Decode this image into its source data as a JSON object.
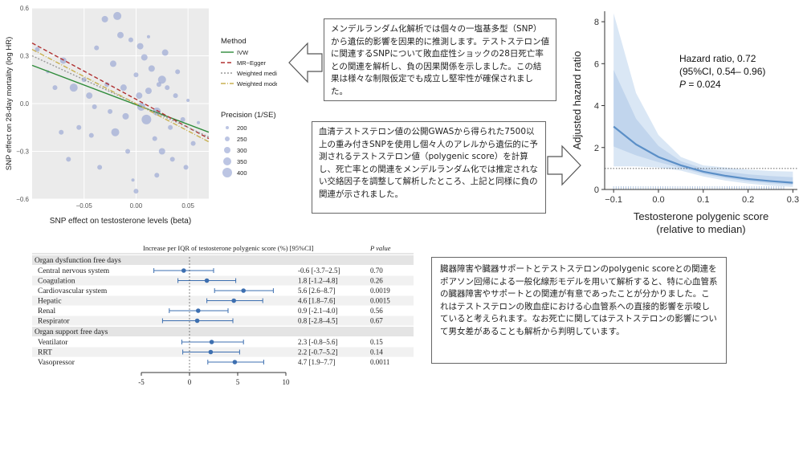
{
  "mr_scatter": {
    "xlabel": "SNP effect on testosterone levels (beta)",
    "ylabel": "SNP effect on 28-day mortality (log HR)",
    "xticks": [
      "−0.05",
      "0.00",
      "0.05"
    ],
    "yticks": [
      "0.6",
      "0.3",
      "0.0",
      "−0.3",
      "−0.6"
    ],
    "legend_method_title": "Method",
    "legend_methods": [
      "IVW",
      "MR−Egger",
      "Weighted median",
      "Weighted mode"
    ],
    "legend_precision_title": "Precision (1/SE)",
    "legend_precision": [
      "200",
      "250",
      "300",
      "350",
      "400"
    ],
    "colors": {
      "ivw": "#2e8b3a",
      "egger": "#b03030",
      "wmedian": "#999999",
      "wmode": "#c8b050",
      "points": "#8f9fd0"
    }
  },
  "callout_top": {
    "text": "メンデルランダム化解析では個々の一塩基多型（SNP）から遺伝的影響を因果的に推測します。テストステロン値に関連するSNPについて敗血症性ショックの28日死亡率との関連を解析し、負の因果関係を示しました。この結果は様々な制限仮定でも成立し堅牢性が確保されました。"
  },
  "callout_mid": {
    "text": "血清テストステロン値の公開GWASから得られた7500以上の重み付きSNPを使用し個々人のアレルから遺伝的に予測されるテストステロン値（polygenic score）を計算し、死亡率との関連をメンデルランダム化では推定されない交絡因子を調整して解析したところ、上記と同様に負の関連が示されました。"
  },
  "callout_bottom": {
    "text": "臓器障害や臓器サポートとテストステロンのpolygenic scoreとの関連をポアソン回帰による一般化線形モデルを用いて解析すると、特に心血管系の臓器障害やサポートとの関連が有意であったことが分かりました。これはテストステロンの敗血症における心血管系への直接的影響を示唆していると考えられます。なお死亡に関してはテストステロンの影響について男女差があることも解析から判明しています。"
  },
  "hr_plot": {
    "ylabel": "Adjusted hazard ratio",
    "xlabel_line1": "Testosterone polygenic score",
    "xlabel_line2": "(relative to median)",
    "xticks": [
      "−0.1",
      "0.0",
      "0.1",
      "0.2",
      "0.3"
    ],
    "yticks": [
      "0",
      "2",
      "4",
      "6",
      "8"
    ],
    "annotation_line1": "Hazard ratio, 0.72",
    "annotation_line2": "(95%CI, 0.54– 0.96)",
    "annotation_p_label": "P",
    "annotation_p_value": " = 0.024"
  },
  "forest": {
    "header_label": "Increase per IQR of testosterone polygenic score (%) [95%CI]",
    "header_p": "P value",
    "section1": "Organ dysfunction free days",
    "section2": "Organ support free days",
    "rows1": [
      {
        "label": "Central nervous system",
        "est": "-0.6 [-3.7–2.5]",
        "p": "0.70"
      },
      {
        "label": "Coagulation",
        "est": "1.8 [-1.2–4.8]",
        "p": "0.26"
      },
      {
        "label": "Cardiovascular system",
        "est": "5.6 [2.6–8.7]",
        "p": "0.0019"
      },
      {
        "label": "Hepatic",
        "est": "4.6 [1.8–7.6]",
        "p": "0.0015"
      },
      {
        "label": "Renal",
        "est": "0.9 [-2.1–4.0]",
        "p": "0.56"
      },
      {
        "label": "Respirator",
        "est": "0.8 [-2.8–4.5]",
        "p": "0.67"
      }
    ],
    "rows2": [
      {
        "label": "Ventilator",
        "est": "2.3 [-0.8–5.6]",
        "p": "0.15"
      },
      {
        "label": "RRT",
        "est": "2.2 [-0.7–5.2]",
        "p": "0.14"
      },
      {
        "label": "Vasopressor",
        "est": "4.7 [1.9–7.7]",
        "p": "0.0011"
      }
    ],
    "xticks": [
      "-5",
      "0",
      "5",
      "10"
    ]
  },
  "chart_data": [
    {
      "type": "scatter",
      "title": "",
      "xlabel": "SNP effect on testosterone levels (beta)",
      "ylabel": "SNP effect on 28-day mortality (log HR)",
      "xlim": [
        -0.1,
        0.07
      ],
      "ylim": [
        -0.6,
        0.6
      ],
      "points": [
        {
          "x": -0.095,
          "y": 0.34,
          "s": 250
        },
        {
          "x": -0.085,
          "y": 0.2,
          "s": 200
        },
        {
          "x": -0.078,
          "y": 0.1,
          "s": 250
        },
        {
          "x": -0.07,
          "y": 0.27,
          "s": 300
        },
        {
          "x": -0.06,
          "y": 0.1,
          "s": 350
        },
        {
          "x": -0.055,
          "y": -0.15,
          "s": 250
        },
        {
          "x": -0.05,
          "y": 0.15,
          "s": 250
        },
        {
          "x": -0.045,
          "y": 0.05,
          "s": 300
        },
        {
          "x": -0.043,
          "y": -0.2,
          "s": 250
        },
        {
          "x": -0.038,
          "y": 0.35,
          "s": 250
        },
        {
          "x": -0.035,
          "y": -0.4,
          "s": 250
        },
        {
          "x": -0.03,
          "y": 0.53,
          "s": 300
        },
        {
          "x": -0.028,
          "y": 0.12,
          "s": 250
        },
        {
          "x": -0.025,
          "y": -0.05,
          "s": 250
        },
        {
          "x": -0.022,
          "y": 0.25,
          "s": 300
        },
        {
          "x": -0.02,
          "y": -0.18,
          "s": 350
        },
        {
          "x": -0.018,
          "y": 0.55,
          "s": 350
        },
        {
          "x": -0.015,
          "y": 0.43,
          "s": 300
        },
        {
          "x": -0.012,
          "y": 0.1,
          "s": 300
        },
        {
          "x": -0.01,
          "y": -0.08,
          "s": 300
        },
        {
          "x": -0.008,
          "y": -0.3,
          "s": 250
        },
        {
          "x": -0.005,
          "y": 0.4,
          "s": 250
        },
        {
          "x": -0.003,
          "y": -0.48,
          "s": 200
        },
        {
          "x": 0.0,
          "y": 0.18,
          "s": 250
        },
        {
          "x": 0.003,
          "y": 0.05,
          "s": 300
        },
        {
          "x": 0.005,
          "y": -0.02,
          "s": 350
        },
        {
          "x": 0.008,
          "y": 0.29,
          "s": 300
        },
        {
          "x": 0.01,
          "y": -0.1,
          "s": 400
        },
        {
          "x": 0.012,
          "y": 0.08,
          "s": 300
        },
        {
          "x": 0.015,
          "y": 0.22,
          "s": 300
        },
        {
          "x": 0.018,
          "y": -0.22,
          "s": 250
        },
        {
          "x": 0.02,
          "y": -0.05,
          "s": 350
        },
        {
          "x": 0.022,
          "y": 0.12,
          "s": 250
        },
        {
          "x": 0.025,
          "y": -0.3,
          "s": 300
        },
        {
          "x": 0.028,
          "y": 0.32,
          "s": 300
        },
        {
          "x": 0.03,
          "y": 0.1,
          "s": 250
        },
        {
          "x": 0.033,
          "y": -0.15,
          "s": 250
        },
        {
          "x": 0.035,
          "y": -0.35,
          "s": 250
        },
        {
          "x": 0.038,
          "y": 0.05,
          "s": 250
        },
        {
          "x": 0.045,
          "y": -0.1,
          "s": 250
        },
        {
          "x": 0.05,
          "y": 0.02,
          "s": 200
        },
        {
          "x": 0.055,
          "y": -0.25,
          "s": 250
        },
        {
          "x": 0.06,
          "y": -0.12,
          "s": 200
        },
        {
          "x": 0.048,
          "y": -0.4,
          "s": 250
        },
        {
          "x": -0.065,
          "y": -0.35,
          "s": 250
        },
        {
          "x": -0.072,
          "y": -0.18,
          "s": 250
        },
        {
          "x": 0.004,
          "y": 0.36,
          "s": 300
        },
        {
          "x": 0.012,
          "y": 0.42,
          "s": 200
        },
        {
          "x": 0.02,
          "y": -0.45,
          "s": 250
        },
        {
          "x": -0.04,
          "y": -0.02,
          "s": 250
        },
        {
          "x": 0.0,
          "y": -0.55,
          "s": 250
        },
        {
          "x": 0.025,
          "y": 0.15,
          "s": 350
        },
        {
          "x": 0.04,
          "y": 0.2,
          "s": 250
        }
      ],
      "series": [
        {
          "name": "IVW",
          "x": [
            -0.1,
            0.07
          ],
          "y": [
            0.24,
            -0.18
          ]
        },
        {
          "name": "MR−Egger",
          "x": [
            -0.1,
            0.07
          ],
          "y": [
            0.38,
            -0.22
          ]
        },
        {
          "name": "Weighted median",
          "x": [
            -0.1,
            0.07
          ],
          "y": [
            0.3,
            -0.21
          ]
        },
        {
          "name": "Weighted mode",
          "x": [
            -0.1,
            0.07
          ],
          "y": [
            0.34,
            -0.24
          ]
        }
      ]
    },
    {
      "type": "line",
      "title": "",
      "xlabel": "Testosterone polygenic score (relative to median)",
      "ylabel": "Adjusted hazard ratio",
      "xlim": [
        -0.12,
        0.31
      ],
      "ylim": [
        0,
        8.5
      ],
      "reference_line": 1,
      "series": [
        {
          "name": "Hazard ratio",
          "x": [
            -0.1,
            -0.05,
            0.0,
            0.05,
            0.1,
            0.15,
            0.2,
            0.25,
            0.3
          ],
          "y": [
            3.0,
            2.15,
            1.55,
            1.15,
            0.85,
            0.65,
            0.5,
            0.4,
            0.32
          ],
          "lower": [
            1.1,
            1.1,
            1.05,
            0.9,
            0.62,
            0.42,
            0.28,
            0.18,
            0.12
          ],
          "upper": [
            8.4,
            4.6,
            2.6,
            1.55,
            1.15,
            1.05,
            0.95,
            0.88,
            0.85
          ]
        }
      ]
    },
    {
      "type": "forest",
      "title": "",
      "xlim": [
        -5,
        10
      ],
      "categories": [
        "Central nervous system",
        "Coagulation",
        "Cardiovascular system",
        "Hepatic",
        "Renal",
        "Respirator",
        "Ventilator",
        "RRT",
        "Vasopressor"
      ],
      "values": [
        -0.6,
        1.8,
        5.6,
        4.6,
        0.9,
        0.8,
        2.3,
        2.2,
        4.7
      ],
      "lower": [
        -3.7,
        -1.2,
        2.6,
        1.8,
        -2.1,
        -2.8,
        -0.8,
        -0.7,
        1.9
      ],
      "upper": [
        2.5,
        4.8,
        8.7,
        7.6,
        4.0,
        4.5,
        5.6,
        5.2,
        7.7
      ],
      "p": [
        "0.70",
        "0.26",
        "0.0019",
        "0.0015",
        "0.56",
        "0.67",
        "0.15",
        "0.14",
        "0.0011"
      ]
    }
  ]
}
